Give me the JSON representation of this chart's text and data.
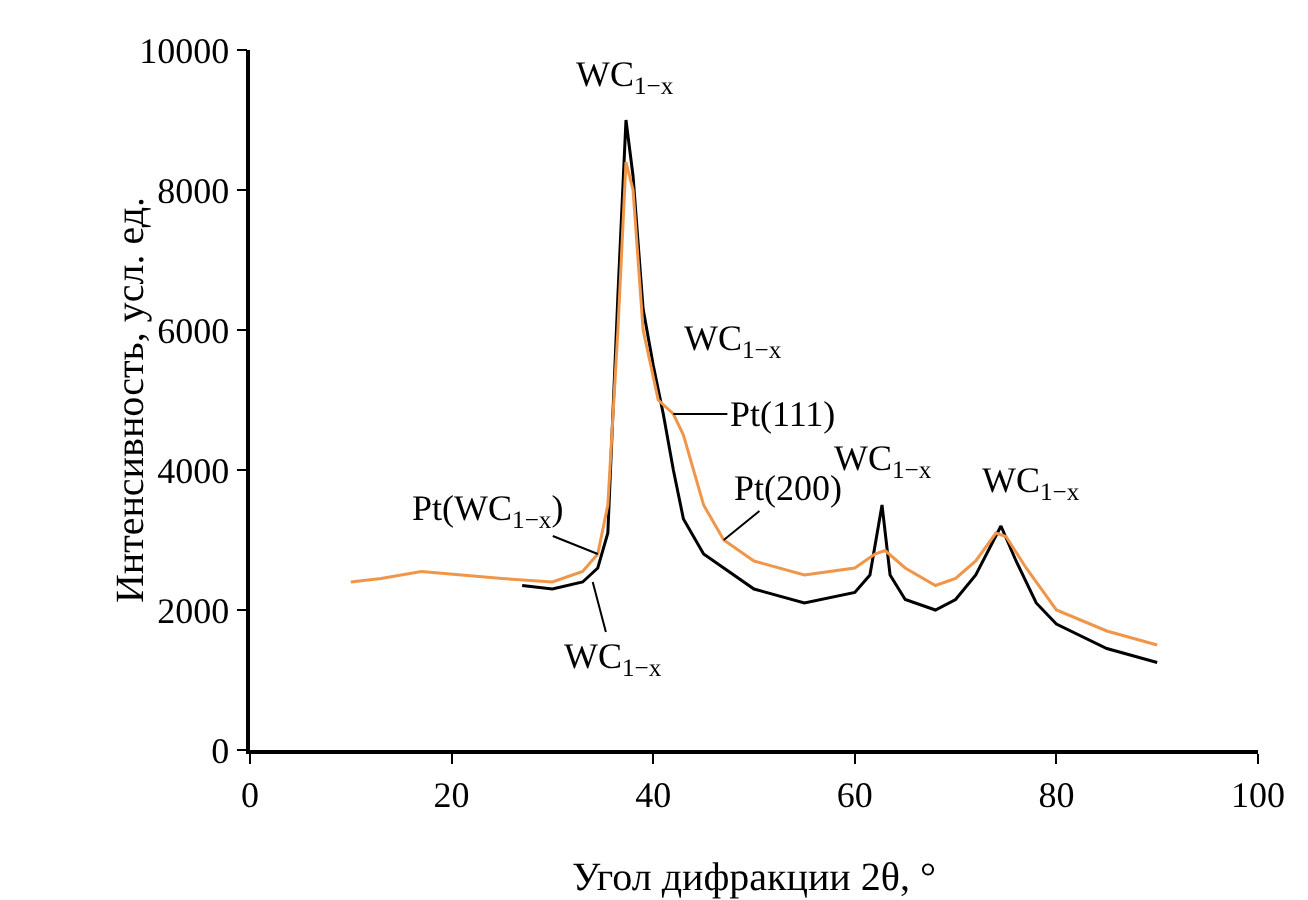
{
  "chart_data": {
    "type": "line",
    "xlabel": "Угол дифракции 2θ, °",
    "ylabel": "Интенсивность, усл. ед.",
    "xlim": [
      0,
      100
    ],
    "xticks": [
      0,
      20,
      40,
      60,
      80,
      100
    ],
    "ylim": [
      0,
      10000
    ],
    "yticks": [
      0,
      2000,
      4000,
      6000,
      8000,
      10000
    ],
    "grid": false,
    "marker": "none",
    "line_style": "solid",
    "series": [
      {
        "color": "#000000",
        "x": [
          27,
          30,
          33,
          34.5,
          35.5,
          36.5,
          37.3,
          38,
          39,
          40,
          41,
          42,
          43,
          45,
          50,
          55,
          60,
          61.5,
          62.7,
          63.5,
          65,
          68,
          70,
          72,
          74.5,
          76,
          78,
          80,
          85,
          90
        ],
        "values": [
          2350,
          2300,
          2400,
          2600,
          3100,
          6500,
          9000,
          8200,
          6300,
          5500,
          4800,
          4000,
          3300,
          2800,
          2300,
          2100,
          2250,
          2500,
          3500,
          2500,
          2150,
          2000,
          2150,
          2500,
          3200,
          2700,
          2100,
          1800,
          1450,
          1250
        ]
      },
      {
        "color": "#f0964a",
        "x": [
          10,
          13,
          17,
          21,
          25,
          30,
          33,
          34.5,
          35.5,
          36.5,
          37.3,
          38,
          39,
          40.5,
          42,
          43,
          45,
          47,
          50,
          55,
          60,
          62,
          63,
          65,
          68,
          70,
          72,
          74,
          75,
          77,
          80,
          85,
          90
        ],
        "values": [
          2400,
          2450,
          2550,
          2500,
          2450,
          2400,
          2550,
          2800,
          3500,
          6000,
          8400,
          8000,
          6000,
          5000,
          4800,
          4500,
          3500,
          3000,
          2700,
          2500,
          2600,
          2800,
          2850,
          2600,
          2350,
          2450,
          2700,
          3100,
          3050,
          2600,
          2000,
          1700,
          1500
        ]
      }
    ],
    "annotations": [
      {
        "text": "WC$_{1−x}$",
        "x": 37.3,
        "y": 9000
      },
      {
        "text": "WC$_{1−x}$",
        "x": 40,
        "y": 5500
      },
      {
        "text": "Pt(111)",
        "x": 42,
        "y": 4800
      },
      {
        "text": "Pt(200)",
        "x": 47,
        "y": 3000
      },
      {
        "text": "WC$_{1−x}$",
        "x": 62.7,
        "y": 3500
      },
      {
        "text": "WC$_{1−x}$",
        "x": 74.5,
        "y": 3200
      },
      {
        "text": "Pt(WC$_{1−x}$)",
        "x": 34.5,
        "y": 2800
      },
      {
        "text": "WC$_{1−x}$",
        "x": 34,
        "y": 2400
      }
    ]
  }
}
